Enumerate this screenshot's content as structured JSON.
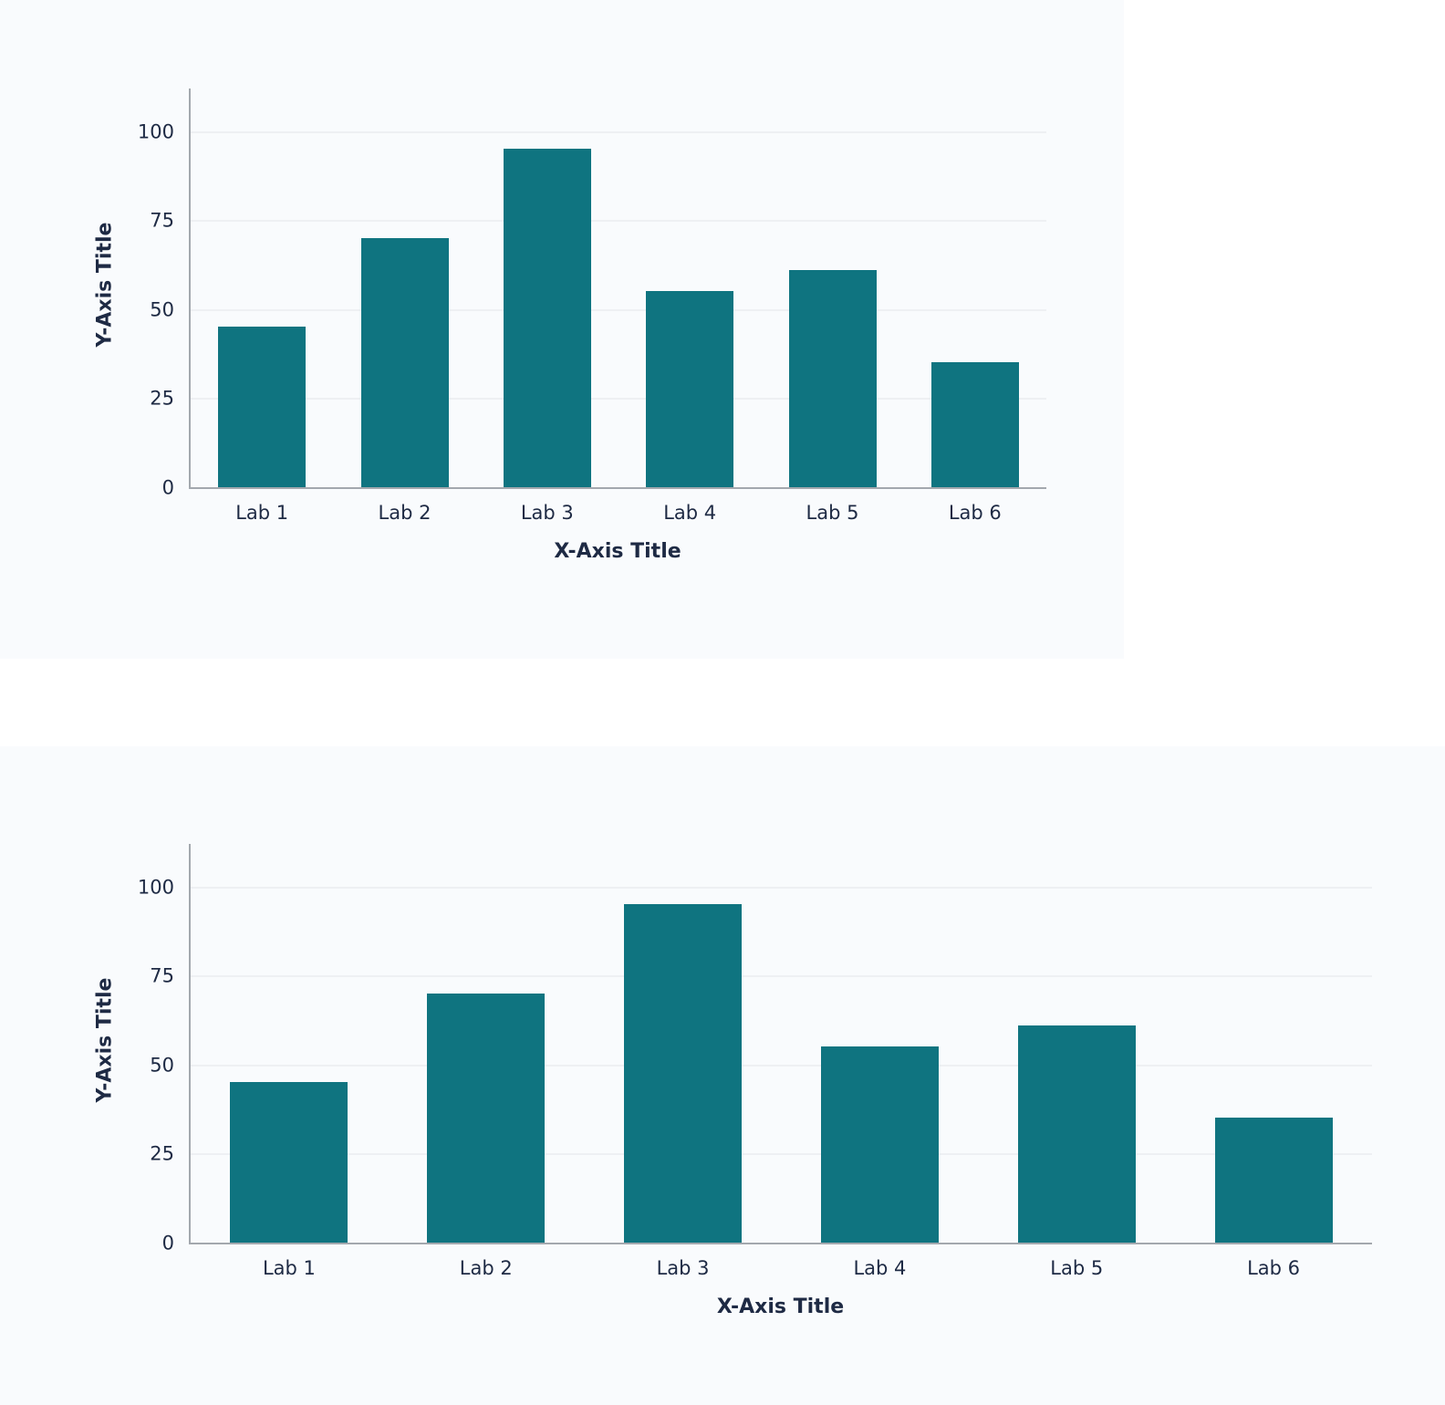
{
  "chart_data": [
    {
      "type": "bar",
      "title": "",
      "categories": [
        "Lab 1",
        "Lab 2",
        "Lab 3",
        "Lab 4",
        "Lab 5",
        "Lab 6"
      ],
      "values": [
        45,
        70,
        95,
        55,
        61,
        35
      ],
      "xlabel": "X-Axis Title",
      "ylabel": "Y-Axis Title",
      "ylim": [
        0,
        112
      ],
      "yticks": [
        0,
        25,
        50,
        75,
        100
      ],
      "grid": true,
      "bar_color": "#0f7480"
    },
    {
      "type": "bar",
      "title": "",
      "categories": [
        "Lab 1",
        "Lab 2",
        "Lab 3",
        "Lab 4",
        "Lab 5",
        "Lab 6"
      ],
      "values": [
        45,
        70,
        95,
        55,
        61,
        35
      ],
      "xlabel": "X-Axis Title",
      "ylabel": "Y-Axis Title",
      "ylim": [
        0,
        112
      ],
      "yticks": [
        0,
        25,
        50,
        75,
        100
      ],
      "grid": true,
      "bar_color": "#0f7480"
    }
  ],
  "colors": {
    "bar": "#0f7480",
    "panel_bg": "#f9fbfd",
    "text": "#1e2a44",
    "axis": "#a3a8ae",
    "grid": "#eef0f3"
  }
}
